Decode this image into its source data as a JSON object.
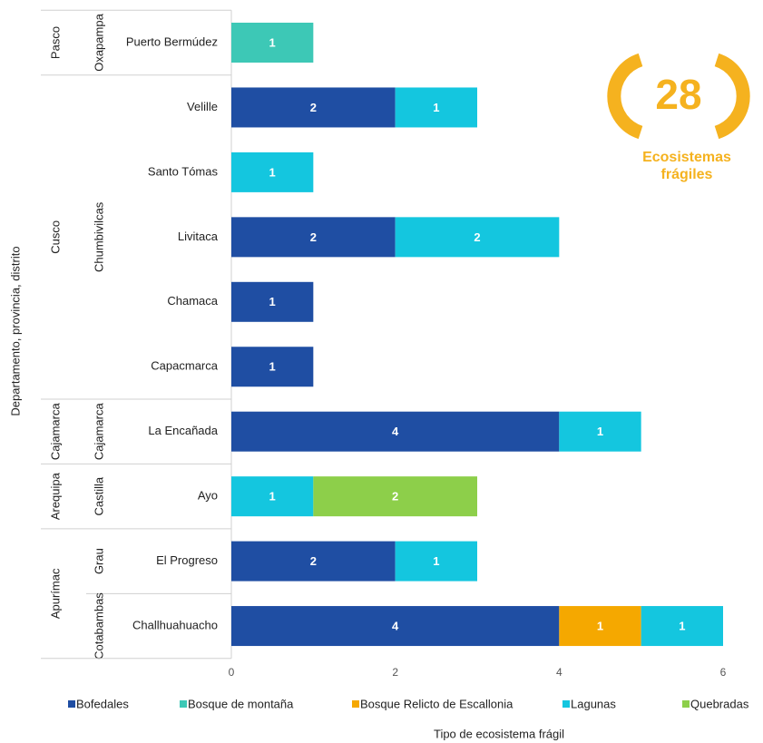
{
  "chart_data": {
    "type": "stacked-bar-horizontal",
    "y_axis_label": "Departamento, provincia, distrito",
    "x_axis_label": "Tipo de ecosistema frágil",
    "badge_number": 28,
    "badge_text": [
      "Ecosistemas",
      "frágiles"
    ],
    "departments": [
      {
        "name": "Pasco",
        "provinces": [
          {
            "name": "Oxapampa",
            "districts": [
              "Puerto Bermúdez"
            ]
          }
        ]
      },
      {
        "name": "Cusco",
        "provinces": [
          {
            "name": "Chumbivilcas",
            "districts": [
              "Velille",
              "Santo Tómas",
              "Livitaca",
              "Chamaca",
              "Capacmarca"
            ]
          }
        ]
      },
      {
        "name": "Cajamarca",
        "provinces": [
          {
            "name": "Cajamarca",
            "districts": [
              "La Encañada"
            ]
          }
        ]
      },
      {
        "name": "Arequipa",
        "provinces": [
          {
            "name": "Castilla",
            "districts": [
              "Ayo"
            ]
          }
        ]
      },
      {
        "name": "Apurímac",
        "provinces": [
          {
            "name": "Grau",
            "districts": [
              "El Progreso"
            ]
          },
          {
            "name": "Cotabambas",
            "districts": [
              "Challhuahuacho"
            ]
          }
        ]
      }
    ],
    "series": [
      {
        "name": "Bofedales",
        "color": "#1f4ea3",
        "values": [
          null,
          2,
          null,
          2,
          1,
          1,
          4,
          null,
          2,
          4
        ]
      },
      {
        "name": "Bosque de montaña",
        "color": "#3dc8b6",
        "values": [
          1,
          null,
          null,
          null,
          null,
          null,
          null,
          null,
          null,
          null
        ]
      },
      {
        "name": "Bosque Relicto de Escallonia",
        "color": "#f5a800",
        "values": [
          null,
          null,
          null,
          null,
          null,
          null,
          null,
          null,
          null,
          1
        ]
      },
      {
        "name": "Lagunas",
        "color": "#14c6df",
        "values": [
          null,
          1,
          1,
          2,
          null,
          null,
          1,
          1,
          1,
          1
        ]
      },
      {
        "name": "Quebradas",
        "color": "#8dcf4a",
        "values": [
          null,
          null,
          null,
          null,
          null,
          null,
          null,
          2,
          null,
          null
        ]
      }
    ],
    "xlim": [
      0,
      6
    ],
    "xticks": [
      0,
      2,
      4,
      6
    ],
    "badge_color": "#f5b21f"
  }
}
